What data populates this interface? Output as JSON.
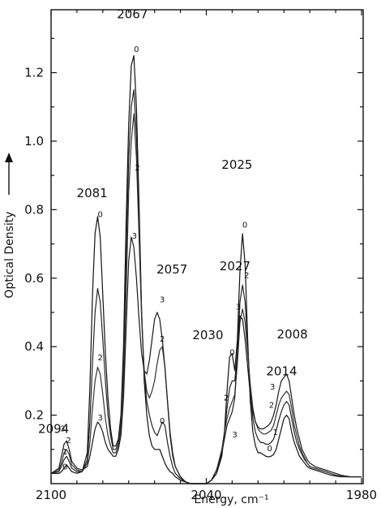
{
  "chart_data": {
    "type": "line",
    "xlabel": "Energy, cm⁻¹",
    "ylabel": "Optical Density",
    "xlim": [
      2100,
      1980
    ],
    "ylim": [
      0.0,
      1.36
    ],
    "x_reversed": true,
    "grid": false,
    "legend": "none",
    "xticks": [
      2100,
      2040,
      1980
    ],
    "xtick_labels": [
      "2100",
      "2040",
      "1980"
    ],
    "yticks": [
      0.2,
      0.4,
      0.6,
      0.8,
      1.0,
      1.2
    ],
    "ytick_labels": [
      "0.2",
      "0.4",
      "0.6",
      "0.8",
      "1.0",
      "1.2"
    ],
    "peak_labels": [
      {
        "text": "2094",
        "x": 2094,
        "y": 0.12
      },
      {
        "text": "2081",
        "x": 2081,
        "y": 0.76
      },
      {
        "text": "2067",
        "x": 2067,
        "y": 1.24
      },
      {
        "text": "2057",
        "x": 2057,
        "y": 0.5
      },
      {
        "text": "2030",
        "x": 2030,
        "y": 0.36
      },
      {
        "text": "2027",
        "x": 2027,
        "y": 0.5
      },
      {
        "text": "2025",
        "x": 2025,
        "y": 0.73
      },
      {
        "text": "2014",
        "x": 2014,
        "y": 0.26
      },
      {
        "text": "2008",
        "x": 2008,
        "y": 0.31
      }
    ],
    "curve_markers": [
      {
        "text": "3",
        "x": 2095.5,
        "y": 0.153
      },
      {
        "text": "2",
        "x": 2093.2,
        "y": 0.118
      },
      {
        "text": "1",
        "x": 2094.6,
        "y": 0.085
      },
      {
        "text": "0",
        "x": 2094.6,
        "y": 0.042
      },
      {
        "text": "0",
        "x": 2081.0,
        "y": 0.778
      },
      {
        "text": "2",
        "x": 2081.0,
        "y": 0.36
      },
      {
        "text": "3",
        "x": 2081.0,
        "y": 0.185
      },
      {
        "text": "0",
        "x": 2067.0,
        "y": 1.26
      },
      {
        "text": "2",
        "x": 2066.6,
        "y": 0.915
      },
      {
        "text": "3",
        "x": 2067.8,
        "y": 0.715
      },
      {
        "text": "3",
        "x": 2057.0,
        "y": 0.53
      },
      {
        "text": "2",
        "x": 2057.0,
        "y": 0.415
      },
      {
        "text": "0",
        "x": 2057.0,
        "y": 0.175
      },
      {
        "text": "0",
        "x": 2030.0,
        "y": 0.375
      },
      {
        "text": "2",
        "x": 2032.3,
        "y": 0.243
      },
      {
        "text": "3",
        "x": 2029.0,
        "y": 0.135
      },
      {
        "text": "3",
        "x": 2027.6,
        "y": 0.508
      },
      {
        "text": "0",
        "x": 2025.1,
        "y": 0.748
      },
      {
        "text": "2",
        "x": 2024.4,
        "y": 0.601
      },
      {
        "text": "3",
        "x": 2014.4,
        "y": 0.275
      },
      {
        "text": "2",
        "x": 2014.8,
        "y": 0.222
      },
      {
        "text": "1",
        "x": 2013.3,
        "y": 0.142
      },
      {
        "text": "0",
        "x": 2015.5,
        "y": 0.095
      }
    ],
    "series": [
      {
        "x": [
          2100,
          2097,
          2096,
          2095,
          2094,
          2093,
          2092,
          2090,
          2088,
          2086,
          2085,
          2084,
          2083,
          2082,
          2081,
          2080,
          2079,
          2078,
          2077,
          2076,
          2075,
          2074,
          2073,
          2072,
          2071,
          2070,
          2069,
          2068,
          2067,
          2066,
          2065,
          2064,
          2063,
          2062,
          2061,
          2060,
          2059,
          2058,
          2057,
          2056,
          2055,
          2054,
          2053,
          2052,
          2050,
          2048,
          2046,
          2044,
          2042,
          2040,
          2038,
          2036,
          2034,
          2033,
          2032,
          2031,
          2030,
          2029,
          2028,
          2027,
          2026,
          2025,
          2024,
          2023,
          2022,
          2021,
          2020,
          2019,
          2018,
          2017,
          2016,
          2015,
          2014,
          2013,
          2012,
          2011,
          2010,
          2009,
          2008,
          2007,
          2006,
          2005,
          2004,
          2003,
          2002,
          2001,
          2000,
          1998,
          1996,
          1994,
          1992,
          1990,
          1988,
          1986,
          1984,
          1982,
          1980
        ],
        "y": [
          0.03,
          0.03,
          0.035,
          0.045,
          0.055,
          0.045,
          0.035,
          0.03,
          0.035,
          0.09,
          0.28,
          0.55,
          0.73,
          0.78,
          0.72,
          0.55,
          0.38,
          0.25,
          0.16,
          0.11,
          0.11,
          0.13,
          0.2,
          0.4,
          0.76,
          1.05,
          1.22,
          1.25,
          1.1,
          0.82,
          0.5,
          0.3,
          0.2,
          0.14,
          0.11,
          0.1,
          0.1,
          0.1,
          0.08,
          0.06,
          0.045,
          0.035,
          0.03,
          0.02,
          0.01,
          0.005,
          0.0,
          0.0,
          0.0,
          0.0,
          0.01,
          0.03,
          0.08,
          0.15,
          0.27,
          0.37,
          0.38,
          0.33,
          0.42,
          0.62,
          0.73,
          0.64,
          0.42,
          0.24,
          0.15,
          0.11,
          0.09,
          0.09,
          0.085,
          0.08,
          0.078,
          0.08,
          0.085,
          0.1,
          0.13,
          0.16,
          0.19,
          0.2,
          0.19,
          0.15,
          0.12,
          0.1,
          0.08,
          0.07,
          0.06,
          0.05,
          0.045,
          0.04,
          0.035,
          0.03,
          0.025,
          0.022,
          0.02,
          0.02,
          0.02,
          0.02,
          0.02
        ]
      },
      {
        "x": [
          2100,
          2097,
          2096,
          2095,
          2094,
          2093,
          2092,
          2090,
          2088,
          2086,
          2085,
          2084,
          2083,
          2082,
          2081,
          2080,
          2079,
          2078,
          2077,
          2076,
          2075,
          2074,
          2073,
          2072,
          2071,
          2070,
          2069,
          2068,
          2067,
          2066,
          2065,
          2064,
          2063,
          2062,
          2061,
          2060,
          2059,
          2058,
          2057,
          2056,
          2055,
          2054,
          2053,
          2052,
          2050,
          2048,
          2046,
          2044,
          2042,
          2040,
          2038,
          2036,
          2034,
          2033,
          2032,
          2031,
          2030,
          2029,
          2028,
          2027,
          2026,
          2025,
          2024,
          2023,
          2022,
          2021,
          2020,
          2019,
          2018,
          2017,
          2016,
          2015,
          2014,
          2013,
          2012,
          2011,
          2010,
          2009,
          2008,
          2007,
          2006,
          2005,
          2004,
          2003,
          2002,
          2001,
          2000,
          1998,
          1996,
          1994,
          1992,
          1990,
          1988,
          1986,
          1984,
          1982,
          1980
        ],
        "y": [
          0.03,
          0.035,
          0.05,
          0.07,
          0.08,
          0.065,
          0.045,
          0.035,
          0.035,
          0.07,
          0.18,
          0.35,
          0.5,
          0.57,
          0.53,
          0.42,
          0.3,
          0.2,
          0.14,
          0.1,
          0.1,
          0.12,
          0.18,
          0.35,
          0.65,
          0.95,
          1.1,
          1.15,
          1.02,
          0.78,
          0.5,
          0.32,
          0.24,
          0.2,
          0.17,
          0.15,
          0.14,
          0.16,
          0.18,
          0.17,
          0.12,
          0.08,
          0.05,
          0.03,
          0.015,
          0.005,
          0.0,
          0.0,
          0.0,
          0.0,
          0.01,
          0.04,
          0.09,
          0.15,
          0.22,
          0.28,
          0.3,
          0.3,
          0.38,
          0.53,
          0.58,
          0.53,
          0.4,
          0.27,
          0.19,
          0.15,
          0.13,
          0.12,
          0.12,
          0.115,
          0.115,
          0.12,
          0.13,
          0.155,
          0.185,
          0.21,
          0.23,
          0.24,
          0.23,
          0.19,
          0.15,
          0.12,
          0.1,
          0.085,
          0.07,
          0.06,
          0.05,
          0.045,
          0.04,
          0.035,
          0.03,
          0.025,
          0.022,
          0.02,
          0.02,
          0.02,
          0.02
        ]
      },
      {
        "x": [
          2100,
          2097,
          2096,
          2095,
          2094,
          2093,
          2092,
          2090,
          2088,
          2086,
          2085,
          2084,
          2083,
          2082,
          2081,
          2080,
          2079,
          2078,
          2077,
          2076,
          2075,
          2074,
          2073,
          2072,
          2071,
          2070,
          2069,
          2068,
          2067,
          2066,
          2065,
          2064,
          2063,
          2062,
          2061,
          2060,
          2059,
          2058,
          2057,
          2056,
          2055,
          2054,
          2053,
          2052,
          2050,
          2048,
          2046,
          2044,
          2042,
          2040,
          2038,
          2036,
          2034,
          2033,
          2032,
          2031,
          2030,
          2029,
          2028,
          2027,
          2026,
          2025,
          2024,
          2023,
          2022,
          2021,
          2020,
          2019,
          2018,
          2017,
          2016,
          2015,
          2014,
          2013,
          2012,
          2011,
          2010,
          2009,
          2008,
          2007,
          2006,
          2005,
          2004,
          2003,
          2002,
          2001,
          2000,
          1998,
          1996,
          1994,
          1992,
          1990,
          1988,
          1986,
          1984,
          1982,
          1980
        ],
        "y": [
          0.03,
          0.04,
          0.06,
          0.09,
          0.1,
          0.085,
          0.055,
          0.04,
          0.035,
          0.06,
          0.12,
          0.22,
          0.3,
          0.34,
          0.32,
          0.26,
          0.19,
          0.14,
          0.11,
          0.09,
          0.09,
          0.11,
          0.16,
          0.3,
          0.55,
          0.85,
          1.0,
          1.08,
          0.95,
          0.72,
          0.48,
          0.33,
          0.27,
          0.25,
          0.27,
          0.3,
          0.35,
          0.39,
          0.4,
          0.34,
          0.24,
          0.14,
          0.08,
          0.05,
          0.02,
          0.005,
          0.0,
          0.0,
          0.0,
          0.0,
          0.01,
          0.04,
          0.1,
          0.15,
          0.19,
          0.22,
          0.24,
          0.26,
          0.35,
          0.47,
          0.51,
          0.47,
          0.38,
          0.29,
          0.22,
          0.18,
          0.16,
          0.15,
          0.145,
          0.145,
          0.15,
          0.155,
          0.17,
          0.2,
          0.23,
          0.25,
          0.26,
          0.27,
          0.26,
          0.22,
          0.17,
          0.14,
          0.11,
          0.09,
          0.075,
          0.06,
          0.05,
          0.045,
          0.04,
          0.035,
          0.03,
          0.025,
          0.022,
          0.02,
          0.02,
          0.02,
          0.02
        ]
      },
      {
        "x": [
          2100,
          2097,
          2096,
          2095,
          2094,
          2093,
          2092,
          2090,
          2088,
          2086,
          2085,
          2084,
          2083,
          2082,
          2081,
          2080,
          2079,
          2078,
          2077,
          2076,
          2075,
          2074,
          2073,
          2072,
          2071,
          2070,
          2069,
          2068,
          2067,
          2066,
          2065,
          2064,
          2063,
          2062,
          2061,
          2060,
          2059,
          2058,
          2057,
          2056,
          2055,
          2054,
          2053,
          2052,
          2050,
          2048,
          2046,
          2044,
          2042,
          2040,
          2038,
          2036,
          2034,
          2033,
          2032,
          2031,
          2030,
          2029,
          2028,
          2027,
          2026,
          2025,
          2024,
          2023,
          2022,
          2021,
          2020,
          2019,
          2018,
          2017,
          2016,
          2015,
          2014,
          2013,
          2012,
          2011,
          2010,
          2009,
          2008,
          2007,
          2006,
          2005,
          2004,
          2003,
          2002,
          2001,
          2000,
          1998,
          1996,
          1994,
          1992,
          1990,
          1988,
          1986,
          1984,
          1982,
          1980
        ],
        "y": [
          0.03,
          0.045,
          0.08,
          0.115,
          0.125,
          0.1,
          0.065,
          0.045,
          0.04,
          0.05,
          0.08,
          0.12,
          0.16,
          0.18,
          0.17,
          0.15,
          0.12,
          0.1,
          0.09,
          0.08,
          0.08,
          0.1,
          0.14,
          0.25,
          0.45,
          0.65,
          0.72,
          0.69,
          0.6,
          0.48,
          0.38,
          0.33,
          0.32,
          0.36,
          0.42,
          0.48,
          0.5,
          0.48,
          0.42,
          0.34,
          0.24,
          0.15,
          0.09,
          0.05,
          0.02,
          0.005,
          0.0,
          0.0,
          0.0,
          0.0,
          0.01,
          0.04,
          0.09,
          0.13,
          0.17,
          0.19,
          0.21,
          0.25,
          0.38,
          0.49,
          0.48,
          0.42,
          0.34,
          0.26,
          0.21,
          0.18,
          0.165,
          0.16,
          0.16,
          0.165,
          0.17,
          0.18,
          0.2,
          0.23,
          0.27,
          0.3,
          0.31,
          0.32,
          0.3,
          0.25,
          0.2,
          0.16,
          0.13,
          0.1,
          0.085,
          0.07,
          0.06,
          0.05,
          0.045,
          0.04,
          0.035,
          0.03,
          0.025,
          0.022,
          0.02,
          0.02,
          0.02
        ]
      }
    ]
  }
}
